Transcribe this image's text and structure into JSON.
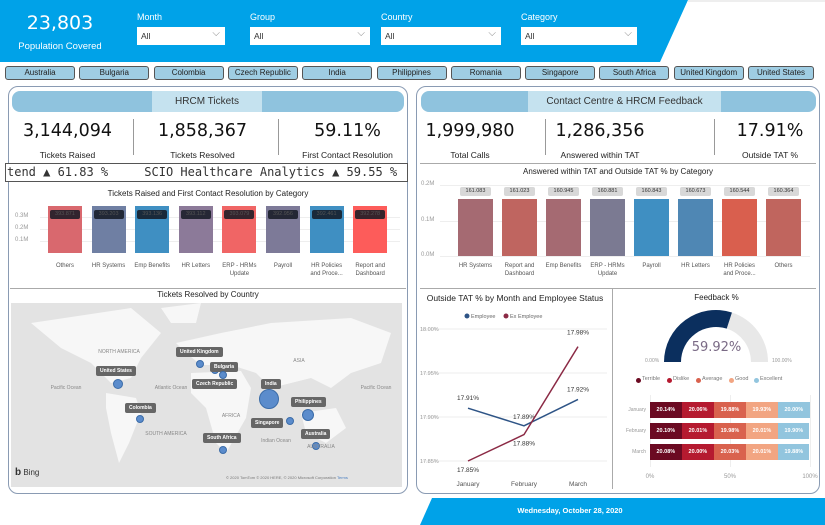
{
  "header": {
    "population_value": "23,803",
    "population_label": "Population Covered",
    "filters": [
      {
        "label": "Month",
        "value": "All"
      },
      {
        "label": "Group",
        "value": "All"
      },
      {
        "label": "Country",
        "value": "All"
      },
      {
        "label": "Category",
        "value": "All"
      }
    ]
  },
  "country_buttons": [
    "Australia",
    "Bulgaria",
    "Colombia",
    "Czech Republic",
    "India",
    "Philippines",
    "Romania",
    "Singapore",
    "South Africa",
    "United Kingdom",
    "United States"
  ],
  "left": {
    "title": "HRCM Tickets",
    "kpis": [
      {
        "value": "3,144,094",
        "label": "Tickets Raised"
      },
      {
        "value": "1,858,367",
        "label": "Tickets Resolved"
      },
      {
        "value": "59.11%",
        "label": "First Contact Resolution"
      }
    ],
    "ticker": "tend ▲ 61.83 %     SCIO Healthcare Analytics ▲ 59.55 %",
    "map": {
      "title": "Tickets Resolved by Country",
      "countries": [
        "United Kingdom",
        "Bulgaria",
        "Czech Republic",
        "United States",
        "India",
        "Philippines",
        "Colombia",
        "Singapore",
        "South Africa",
        "Australia"
      ],
      "regions": [
        "NORTH AMERICA",
        "ASIA",
        "AFRICA",
        "SOUTH AMERICA",
        "AUSTRALIA",
        "Pacific Ocean",
        "Atlantic Ocean",
        "Indian Ocean",
        "Pacific Ocean"
      ],
      "brand": "Bing",
      "attribution": "© 2020 TomTom © 2020 HERE, © 2020 Microsoft Corporation",
      "terms": "Terms"
    }
  },
  "right": {
    "title": "Contact Centre & HRCM Feedback",
    "kpis": [
      {
        "value": "1,999,980",
        "label": "Total Calls"
      },
      {
        "value": "1,286,356",
        "label": "Answered within TAT"
      },
      {
        "value": "17.91%",
        "label": "Outside TAT %"
      }
    ]
  },
  "footer": {
    "date": "Wednesday, October 28, 2020"
  },
  "colors": {
    "header_blue": "#00a2e8",
    "band": "#8fc3de",
    "employee": "#2e5486",
    "ex_employee": "#8b2a45"
  },
  "chart_data": [
    {
      "type": "bar",
      "title": "Tickets Raised and First Contact Resolution by Category",
      "yticks": [
        "0.1M",
        "0.2M",
        "0.3M"
      ],
      "ylim": [
        0,
        0.4
      ],
      "categories": [
        "Others",
        "HR Systems",
        "Emp Benefits",
        "HR Letters",
        "ERP - HRMs Update",
        "Payroll",
        "HR Policies and Proce...",
        "Report and Dashboard"
      ],
      "values": [
        393.871,
        393.203,
        393.136,
        393.112,
        393.079,
        392.956,
        392.461,
        392.278
      ],
      "data_labels": [
        "393.871",
        "393.203",
        "393.136",
        "393.112",
        "393.079",
        "392.956",
        "392.461",
        "392.278"
      ],
      "colors": [
        "#d9686e",
        "#6f7fa3",
        "#3f8fc2",
        "#8c7a99",
        "#f06565",
        "#7d7a98",
        "#3f8fc2",
        "#fd5c5a"
      ]
    },
    {
      "type": "bar",
      "title": "Answered within TAT and Outside TAT % by Category",
      "yticks": [
        "0.0M",
        "0.1M",
        "0.2M"
      ],
      "ylim": [
        0,
        0.2
      ],
      "categories": [
        "HR Systems",
        "Report and Dashboard",
        "Emp Benefits",
        "ERP - HRMs Update",
        "Payroll",
        "HR Letters",
        "HR Policies and Proce...",
        "Others"
      ],
      "values": [
        161.083,
        161.023,
        160.945,
        160.881,
        160.843,
        160.673,
        160.544,
        160.364
      ],
      "data_labels": [
        "161.083",
        "161.023",
        "160.945",
        "160.881",
        "160.843",
        "160.673",
        "160.544",
        "160.364"
      ],
      "colors": [
        "#a56a72",
        "#bf6560",
        "#a56a72",
        "#7b7a92",
        "#3f8fc2",
        "#4f87b4",
        "#d95f4e",
        "#c0655e"
      ]
    },
    {
      "type": "line",
      "title": "Outside TAT % by Month and Employee Status",
      "categories": [
        "January",
        "February",
        "March"
      ],
      "yticks": [
        "17.85%",
        "17.90%",
        "17.95%",
        "18.00%"
      ],
      "ylim": [
        17.85,
        18.0
      ],
      "series": [
        {
          "name": "Employee",
          "values": [
            17.91,
            17.89,
            17.92
          ],
          "labels": [
            "17.91%",
            "17.89%",
            "17.92%"
          ]
        },
        {
          "name": "Ex Employee",
          "values": [
            17.85,
            17.88,
            17.98
          ],
          "labels": [
            "17.85%",
            "17.88%",
            "17.98%"
          ]
        }
      ]
    },
    {
      "type": "gauge",
      "title": "Feedback %",
      "value": 59.92,
      "value_label": "59.92%",
      "min_label": "0.00%",
      "max_label": "100.00%"
    },
    {
      "type": "bar",
      "stacked": true,
      "orientation": "horizontal",
      "categories": [
        "January",
        "February",
        "March"
      ],
      "xticks": [
        "0%",
        "50%",
        "100%"
      ],
      "series": [
        {
          "name": "Terrible",
          "color": "#6b0a22",
          "values": [
            20.14,
            20.1,
            20.08
          ]
        },
        {
          "name": "Dislike",
          "color": "#b51a30",
          "values": [
            20.06,
            20.01,
            20.0
          ]
        },
        {
          "name": "Average",
          "color": "#d9624e",
          "values": [
            19.88,
            19.98,
            20.03
          ]
        },
        {
          "name": "Good",
          "color": "#f2a582",
          "values": [
            19.93,
            20.01,
            20.01
          ]
        },
        {
          "name": "Excellent",
          "color": "#92c5de",
          "values": [
            20.0,
            19.9,
            19.88
          ]
        }
      ]
    }
  ]
}
